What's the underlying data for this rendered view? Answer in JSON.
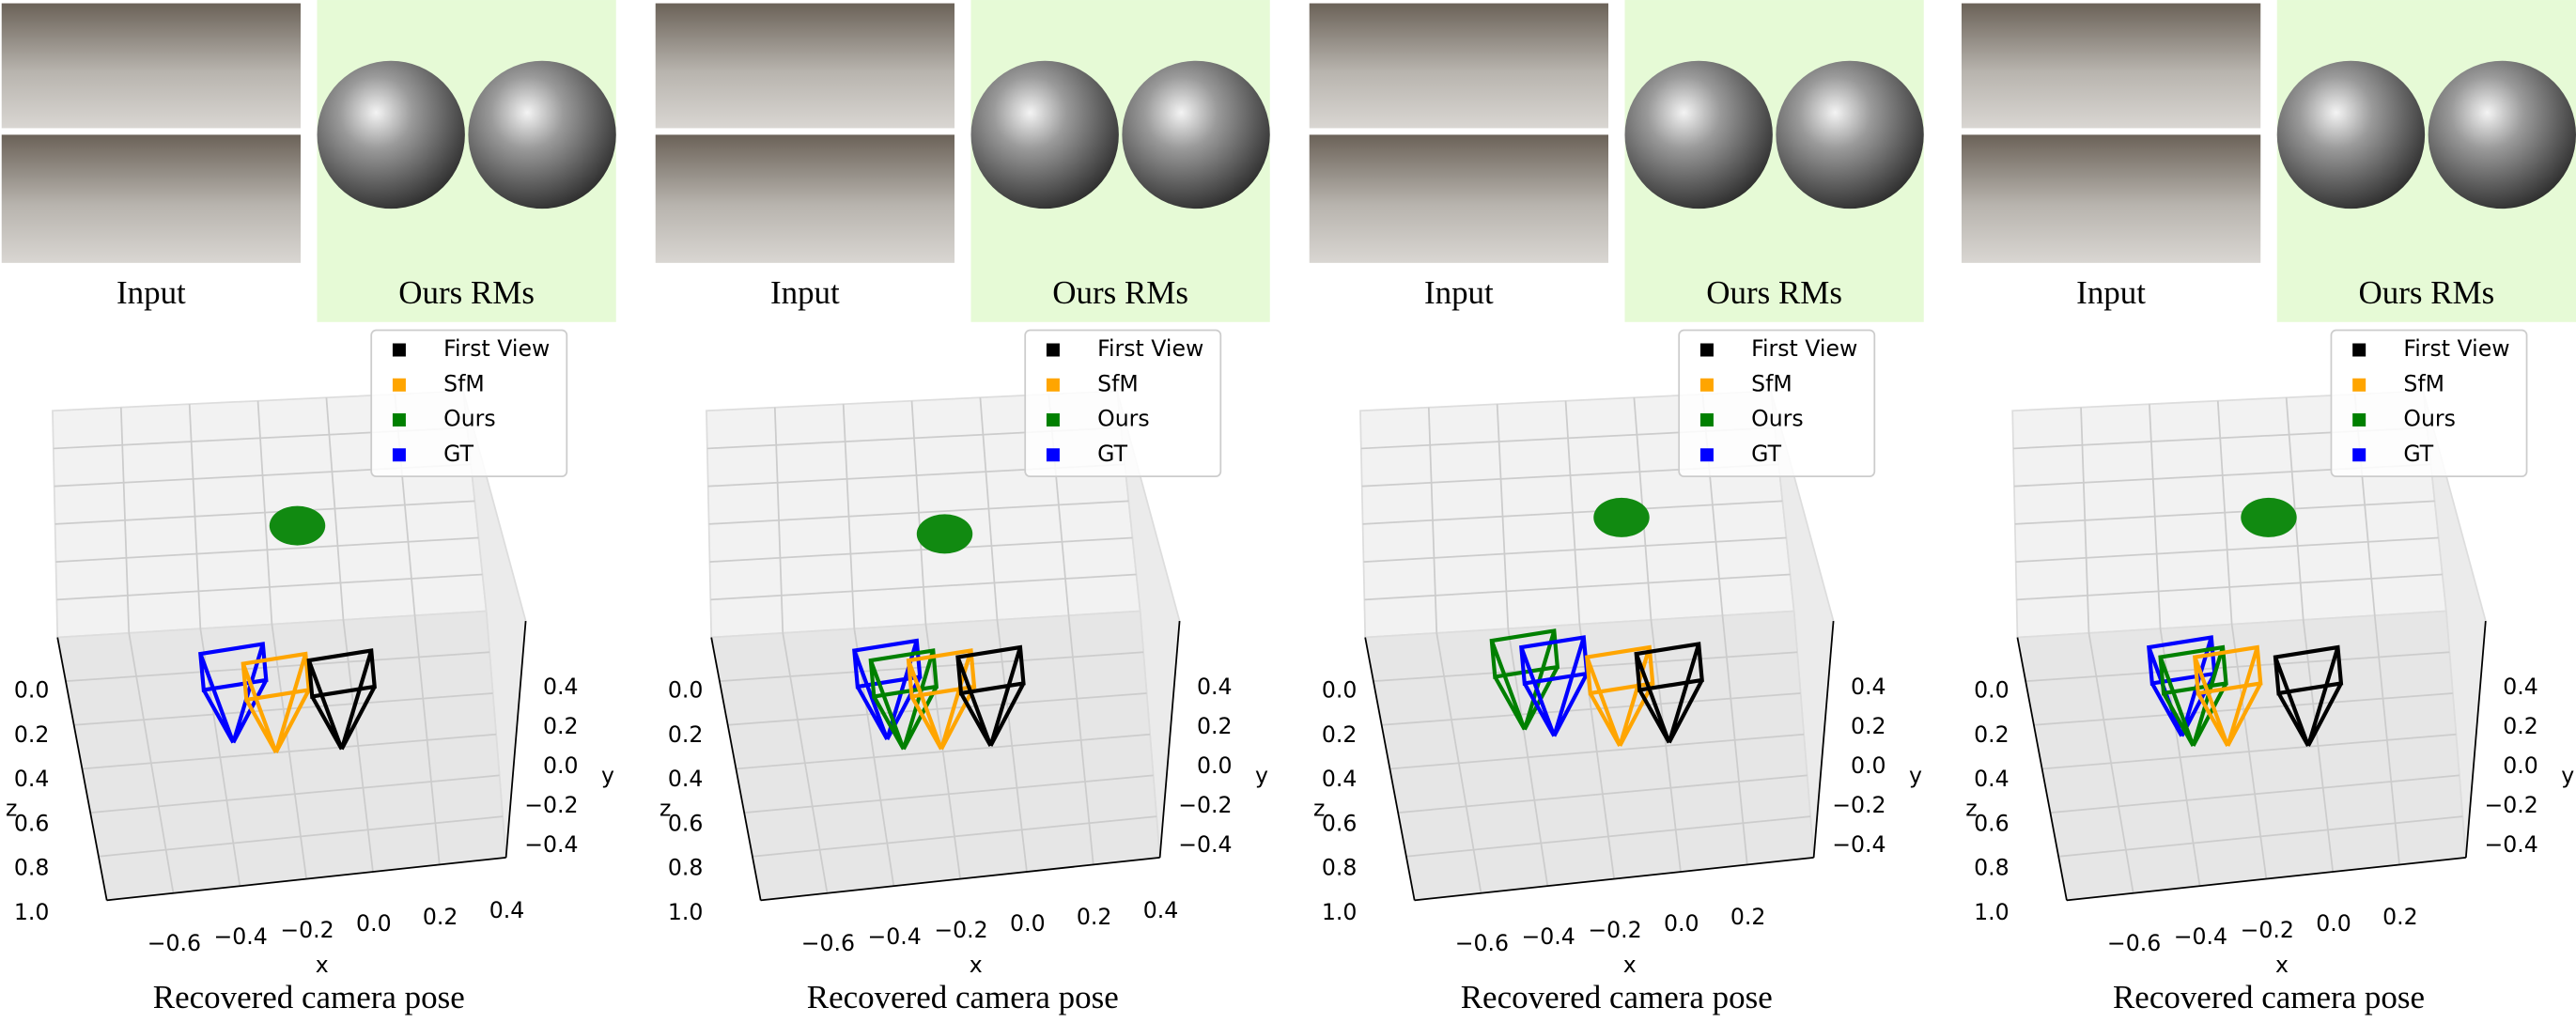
{
  "panels": [
    {
      "input_label": "Input",
      "rm_label": "Ours RMs",
      "legend": [
        {
          "name": "First View",
          "color": "#000000"
        },
        {
          "name": "SfM",
          "color": "#ffa500"
        },
        {
          "name": "Ours",
          "color": "#008000"
        },
        {
          "name": "GT",
          "color": "#0000ff"
        }
      ],
      "x_label": "x",
      "y_label": "y",
      "z_label": "z",
      "x_ticks": [
        "−0.6",
        "−0.4",
        "−0.2",
        "0.0",
        "0.2",
        "0.4"
      ],
      "y_ticks": [
        "0.4",
        "0.2",
        "0.0",
        "−0.2",
        "−0.4"
      ],
      "z_ticks": [
        "0.0",
        "0.2",
        "0.4",
        "0.6",
        "0.8",
        "1.0"
      ],
      "caption": "Recovered camera pose"
    },
    {
      "input_label": "Input",
      "rm_label": "Ours RMs",
      "legend": [
        {
          "name": "First View",
          "color": "#000000"
        },
        {
          "name": "SfM",
          "color": "#ffa500"
        },
        {
          "name": "Ours",
          "color": "#008000"
        },
        {
          "name": "GT",
          "color": "#0000ff"
        }
      ],
      "x_label": "x",
      "y_label": "y",
      "z_label": "z",
      "x_ticks": [
        "−0.6",
        "−0.4",
        "−0.2",
        "0.0",
        "0.2",
        "0.4"
      ],
      "y_ticks": [
        "0.4",
        "0.2",
        "0.0",
        "−0.2",
        "−0.4"
      ],
      "z_ticks": [
        "0.0",
        "0.2",
        "0.4",
        "0.6",
        "0.8",
        "1.0"
      ],
      "caption": "Recovered camera pose"
    },
    {
      "input_label": "Input",
      "rm_label": "Ours RMs",
      "legend": [
        {
          "name": "First View",
          "color": "#000000"
        },
        {
          "name": "SfM",
          "color": "#ffa500"
        },
        {
          "name": "Ours",
          "color": "#008000"
        },
        {
          "name": "GT",
          "color": "#0000ff"
        }
      ],
      "x_label": "x",
      "y_label": "y",
      "z_label": "z",
      "x_ticks": [
        "−0.6",
        "−0.4",
        "−0.2",
        "0.0",
        "0.2"
      ],
      "y_ticks": [
        "0.4",
        "0.2",
        "0.0",
        "−0.2",
        "−0.4"
      ],
      "z_ticks": [
        "0.0",
        "0.2",
        "0.4",
        "0.6",
        "0.8",
        "1.0"
      ],
      "caption": "Recovered camera pose"
    },
    {
      "input_label": "Input",
      "rm_label": "Ours RMs",
      "legend": [
        {
          "name": "First View",
          "color": "#000000"
        },
        {
          "name": "SfM",
          "color": "#ffa500"
        },
        {
          "name": "Ours",
          "color": "#008000"
        },
        {
          "name": "GT",
          "color": "#0000ff"
        }
      ],
      "x_label": "x",
      "y_label": "y",
      "z_label": "z",
      "x_ticks": [
        "−0.6",
        "−0.4",
        "−0.2",
        "0.0",
        "0.2"
      ],
      "y_ticks": [
        "0.4",
        "0.2",
        "0.0",
        "−0.2",
        "−0.4"
      ],
      "z_ticks": [
        "0.0",
        "0.2",
        "0.4",
        "0.6",
        "0.8",
        "1.0"
      ],
      "caption": "Recovered camera pose"
    }
  ]
}
